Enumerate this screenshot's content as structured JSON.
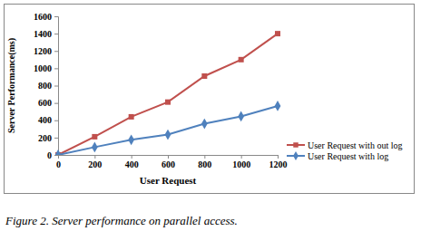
{
  "chart_data": {
    "type": "line",
    "caption": "Figure 2. Server performance on parallel access.",
    "x_label": "User Request",
    "y_label": "Server Performance(ms)",
    "x": [
      0,
      200,
      400,
      600,
      800,
      1000,
      1200
    ],
    "series": [
      {
        "name": "User Request with out log",
        "color": "#c0504d",
        "marker": "square",
        "values": [
          0,
          210,
          440,
          610,
          910,
          1100,
          1400
        ]
      },
      {
        "name": "User Request with log",
        "color": "#4f81bd",
        "marker": "diamond",
        "values": [
          0,
          90,
          175,
          235,
          360,
          445,
          565
        ]
      }
    ],
    "xlim": [
      0,
      1200
    ],
    "xticks": [
      0,
      200,
      400,
      600,
      800,
      1000,
      1200
    ],
    "ylim": [
      0,
      1600
    ],
    "yticks": [
      0,
      200,
      400,
      600,
      800,
      1000,
      1200,
      1400,
      1600
    ],
    "grid": false,
    "legend": "right"
  }
}
